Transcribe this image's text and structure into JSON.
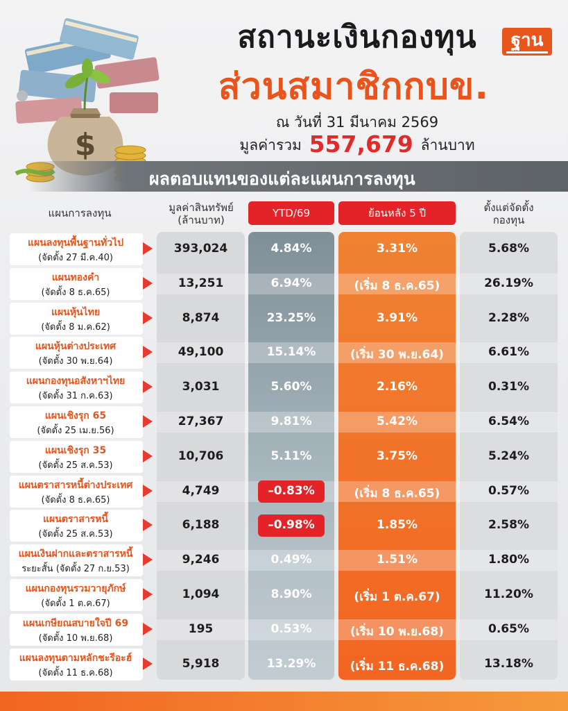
{
  "header": {
    "title_line1": "สถานะเงินกองทุน",
    "title_line2": "ส่วนสมาชิกกบข.",
    "logo_text": "ฐาน",
    "as_of": "ณ วันที่ 31 มีนาคม 2569",
    "total_prefix": "มูลค่ารวม",
    "total_value": "557,679",
    "total_suffix": "ล้านบาท",
    "banner": "ผลตอบแทนของแต่ละแผนการลงทุน"
  },
  "columns": {
    "plan": "แผนการลงทุน",
    "asset_line1": "มูลค่าสินทรัพย์",
    "asset_line2": "(ล้านบาท)",
    "ytd": "YTD/69",
    "five_year": "ย้อนหลัง 5 ปี",
    "since_line1": "ตั้งแต่จัดตั้ง",
    "since_line2": "กองทุน"
  },
  "colors": {
    "accent": "#e8541c",
    "negative": "#e42328",
    "ytd_column": "#8e9da5",
    "five_year_column": "#f26522"
  },
  "plans": [
    {
      "name": "แผนลงทุนพื้นฐานทั่วไป",
      "date": "(จัดตั้ง 27 มี.ค.40)",
      "value": "393,024",
      "ytd": "4.84%",
      "five_year": "3.31%",
      "since": "5.68%",
      "ytd_negative": false
    },
    {
      "name": "แผนทองคำ",
      "date": "(จัดตั้ง 8 ธ.ค.65)",
      "value": "13,251",
      "ytd": "6.94%",
      "five_year": "(เริ่ม 8 ธ.ค.65)",
      "since": "26.19%",
      "ytd_negative": false
    },
    {
      "name": "แผนหุ้นไทย",
      "date": "(จัดตั้ง 8 ม.ค.62)",
      "value": "8,874",
      "ytd": "23.25%",
      "five_year": "3.91%",
      "since": "2.28%",
      "ytd_negative": false
    },
    {
      "name": "แผนหุ้นต่างประเทศ",
      "date": "(จัดตั้ง 30 พ.ย.64)",
      "value": "49,100",
      "ytd": "15.14%",
      "five_year": "(เริ่ม 30 พ.ย.64)",
      "since": "6.61%",
      "ytd_negative": false
    },
    {
      "name": "แผนกองทุนอสังหาฯไทย",
      "date": "(จัดตั้ง 31 ก.ค.63)",
      "value": "3,031",
      "ytd": "5.60%",
      "five_year": "2.16%",
      "since": "0.31%",
      "ytd_negative": false
    },
    {
      "name": "แผนเชิงรุก 65",
      "date": "(จัดตั้ง 25 เม.ย.56)",
      "value": "27,367",
      "ytd": "9.81%",
      "five_year": "5.42%",
      "since": "6.54%",
      "ytd_negative": false
    },
    {
      "name": "แผนเชิงรุก 35",
      "date": "(จัดตั้ง 25 ส.ค.53)",
      "value": "10,706",
      "ytd": "5.11%",
      "five_year": "3.75%",
      "since": "5.24%",
      "ytd_negative": false
    },
    {
      "name": "แผนตราสารหนี้ต่างประเทศ",
      "date": "(จัดตั้ง 8 ธ.ค.65)",
      "value": "4,749",
      "ytd": "–0.83%",
      "five_year": "(เริ่ม 8 ธ.ค.65)",
      "since": "0.57%",
      "ytd_negative": true
    },
    {
      "name": "แผนตราสารหนี้",
      "date": "(จัดตั้ง 25 ส.ค.53)",
      "value": "6,188",
      "ytd": "–0.98%",
      "five_year": "1.85%",
      "since": "2.58%",
      "ytd_negative": true
    },
    {
      "name": "แผนเงินฝากและตราสารหนี้",
      "date": "ระยะสั้น (จัดตั้ง 27 ก.ย.53)",
      "value": "9,246",
      "ytd": "0.49%",
      "five_year": "1.51%",
      "since": "1.80%",
      "ytd_negative": false
    },
    {
      "name": "แผนกองทุนรวมวายุภักษ์",
      "date": "(จัดตั้ง 1 ต.ค.67)",
      "value": "1,094",
      "ytd": "8.90%",
      "five_year": "(เริ่ม 1 ต.ค.67)",
      "since": "11.20%",
      "ytd_negative": false
    },
    {
      "name": "แผนเกษียณสบายใจปี 69",
      "date": "(จัดตั้ง 10 พ.ย.68)",
      "value": "195",
      "ytd": "0.53%",
      "five_year": "(เริ่ม 10 พ.ย.68)",
      "since": "0.65%",
      "ytd_negative": false
    },
    {
      "name": "แผนลงทุนตามหลักชะรีอะฮ์",
      "date": "(จัดตั้ง 11 ธ.ค.68)",
      "value": "5,918",
      "ytd": "13.29%",
      "five_year": "(เริ่ม 11 ธ.ค.68)",
      "since": "13.18%",
      "ytd_negative": false
    }
  ]
}
